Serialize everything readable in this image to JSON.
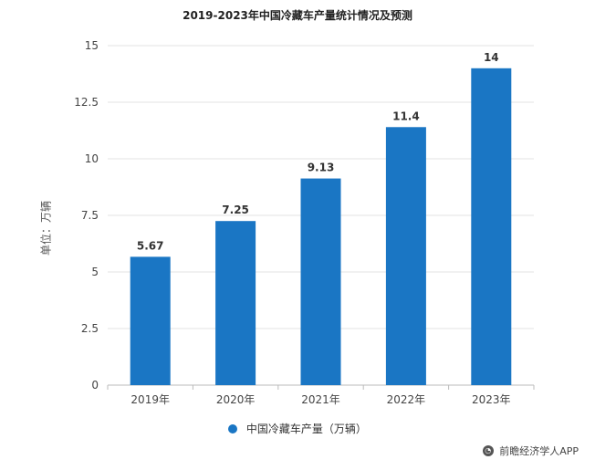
{
  "chart_data": {
    "type": "bar",
    "title": "2019-2023年中国冷藏车产量统计情况及预测",
    "ylabel": "单位：万辆",
    "xlabel": "",
    "categories": [
      "2019年",
      "2020年",
      "2021年",
      "2022年",
      "2023年"
    ],
    "series": [
      {
        "name": "中国冷藏车产量（万辆）",
        "values": [
          5.67,
          7.25,
          9.13,
          11.4,
          14
        ]
      }
    ],
    "data_labels": [
      "5.67",
      "7.25",
      "9.13",
      "11.4",
      "14"
    ],
    "ylim": [
      0,
      15
    ],
    "yticks": [
      0,
      2.5,
      5,
      7.5,
      10,
      12.5,
      15
    ],
    "ytick_labels": [
      "0",
      "2.5",
      "5",
      "7.5",
      "10",
      "12.5",
      "15"
    ],
    "grid": true,
    "legend_position": "bottom-center",
    "bar_color": "#1a76c4"
  },
  "source": {
    "label": "前瞻经济学人APP",
    "icon": "qianzhan-logo-icon"
  }
}
